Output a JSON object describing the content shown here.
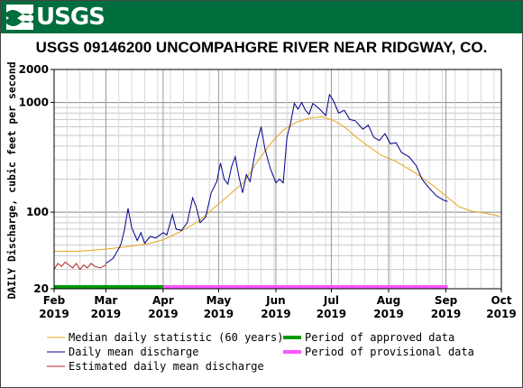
{
  "header": {
    "logo_text": "USGS",
    "logo_icon": "usgs-wave-icon",
    "banner_color": "#006d3c"
  },
  "chart_data": {
    "type": "line",
    "title": "USGS 09146200 UNCOMPAHGRE RIVER NEAR RIDGWAY, CO.",
    "ylabel": "DAILY Discharge, cubic feet per second",
    "xlabel": "",
    "y_scale": "log",
    "ylim": [
      20,
      2000
    ],
    "y_ticks": [
      {
        "value": 20,
        "label": "20"
      },
      {
        "value": 100,
        "label": "100"
      },
      {
        "value": 1000,
        "label": "1000"
      },
      {
        "value": 2000,
        "label": "2000"
      }
    ],
    "x_range": [
      "2019-02-01",
      "2019-10-01"
    ],
    "x_ticks": [
      {
        "date": "2019-02-01",
        "label": "Feb",
        "year": "2019"
      },
      {
        "date": "2019-03-01",
        "label": "Mar",
        "year": "2019"
      },
      {
        "date": "2019-04-01",
        "label": "Apr",
        "year": "2019"
      },
      {
        "date": "2019-05-01",
        "label": "May",
        "year": "2019"
      },
      {
        "date": "2019-06-01",
        "label": "Jun",
        "year": "2019"
      },
      {
        "date": "2019-07-01",
        "label": "Jul",
        "year": "2019"
      },
      {
        "date": "2019-08-01",
        "label": "Aug",
        "year": "2019"
      },
      {
        "date": "2019-09-01",
        "label": "Sep",
        "year": "2019"
      },
      {
        "date": "2019-10-01",
        "label": "Oct",
        "year": "2019"
      }
    ],
    "grid": true,
    "legend_position": "bottom",
    "series": [
      {
        "name": "Median daily statistic (60 years)",
        "color": "#e8a317",
        "points": [
          [
            "2019-02-01",
            44
          ],
          [
            "2019-02-15",
            44
          ],
          [
            "2019-03-01",
            46
          ],
          [
            "2019-03-15",
            49
          ],
          [
            "2019-03-25",
            52
          ],
          [
            "2019-04-01",
            56
          ],
          [
            "2019-04-10",
            66
          ],
          [
            "2019-04-20",
            82
          ],
          [
            "2019-04-30",
            115
          ],
          [
            "2019-05-08",
            150
          ],
          [
            "2019-05-15",
            190
          ],
          [
            "2019-05-22",
            290
          ],
          [
            "2019-05-29",
            420
          ],
          [
            "2019-06-05",
            560
          ],
          [
            "2019-06-12",
            660
          ],
          [
            "2019-06-19",
            720
          ],
          [
            "2019-06-26",
            740
          ],
          [
            "2019-07-02",
            690
          ],
          [
            "2019-07-08",
            600
          ],
          [
            "2019-07-14",
            490
          ],
          [
            "2019-07-20",
            410
          ],
          [
            "2019-07-28",
            330
          ],
          [
            "2019-08-05",
            290
          ],
          [
            "2019-08-15",
            230
          ],
          [
            "2019-08-25",
            175
          ],
          [
            "2019-09-01",
            140
          ],
          [
            "2019-09-08",
            112
          ],
          [
            "2019-09-15",
            102
          ],
          [
            "2019-09-22",
            98
          ],
          [
            "2019-09-30",
            92
          ]
        ]
      },
      {
        "name": "Daily mean discharge",
        "color": "#00008b",
        "points": [
          [
            "2019-03-01",
            34
          ],
          [
            "2019-03-05",
            38
          ],
          [
            "2019-03-09",
            50
          ],
          [
            "2019-03-11",
            68
          ],
          [
            "2019-03-13",
            108
          ],
          [
            "2019-03-15",
            72
          ],
          [
            "2019-03-18",
            55
          ],
          [
            "2019-03-20",
            65
          ],
          [
            "2019-03-22",
            52
          ],
          [
            "2019-03-25",
            60
          ],
          [
            "2019-03-28",
            58
          ],
          [
            "2019-04-01",
            65
          ],
          [
            "2019-04-03",
            62
          ],
          [
            "2019-04-06",
            95
          ],
          [
            "2019-04-08",
            70
          ],
          [
            "2019-04-11",
            68
          ],
          [
            "2019-04-14",
            80
          ],
          [
            "2019-04-17",
            135
          ],
          [
            "2019-04-19",
            110
          ],
          [
            "2019-04-21",
            80
          ],
          [
            "2019-04-24",
            90
          ],
          [
            "2019-04-27",
            150
          ],
          [
            "2019-04-30",
            190
          ],
          [
            "2019-05-02",
            280
          ],
          [
            "2019-05-04",
            200
          ],
          [
            "2019-05-06",
            180
          ],
          [
            "2019-05-08",
            260
          ],
          [
            "2019-05-10",
            320
          ],
          [
            "2019-05-12",
            210
          ],
          [
            "2019-05-14",
            150
          ],
          [
            "2019-05-16",
            220
          ],
          [
            "2019-05-18",
            190
          ],
          [
            "2019-05-20",
            300
          ],
          [
            "2019-05-22",
            450
          ],
          [
            "2019-05-24",
            600
          ],
          [
            "2019-05-26",
            380
          ],
          [
            "2019-05-29",
            250
          ],
          [
            "2019-06-01",
            185
          ],
          [
            "2019-06-03",
            200
          ],
          [
            "2019-06-05",
            185
          ],
          [
            "2019-06-07",
            480
          ],
          [
            "2019-06-09",
            650
          ],
          [
            "2019-06-11",
            980
          ],
          [
            "2019-06-13",
            870
          ],
          [
            "2019-06-15",
            1000
          ],
          [
            "2019-06-17",
            850
          ],
          [
            "2019-06-19",
            780
          ],
          [
            "2019-06-21",
            980
          ],
          [
            "2019-06-23",
            920
          ],
          [
            "2019-06-25",
            860
          ],
          [
            "2019-06-28",
            760
          ],
          [
            "2019-06-30",
            1180
          ],
          [
            "2019-07-02",
            1050
          ],
          [
            "2019-07-05",
            800
          ],
          [
            "2019-07-08",
            850
          ],
          [
            "2019-07-11",
            700
          ],
          [
            "2019-07-14",
            680
          ],
          [
            "2019-07-18",
            570
          ],
          [
            "2019-07-21",
            620
          ],
          [
            "2019-07-24",
            480
          ],
          [
            "2019-07-27",
            450
          ],
          [
            "2019-07-30",
            520
          ],
          [
            "2019-08-02",
            420
          ],
          [
            "2019-08-05",
            430
          ],
          [
            "2019-08-08",
            350
          ],
          [
            "2019-08-12",
            320
          ],
          [
            "2019-08-16",
            265
          ],
          [
            "2019-08-19",
            200
          ],
          [
            "2019-08-23",
            165
          ],
          [
            "2019-08-27",
            140
          ],
          [
            "2019-08-31",
            128
          ],
          [
            "2019-09-02",
            125
          ]
        ]
      },
      {
        "name": "Estimated daily mean discharge",
        "color": "#b22222",
        "points": [
          [
            "2019-02-01",
            30
          ],
          [
            "2019-02-03",
            34
          ],
          [
            "2019-02-05",
            32
          ],
          [
            "2019-02-07",
            35
          ],
          [
            "2019-02-09",
            33
          ],
          [
            "2019-02-11",
            31
          ],
          [
            "2019-02-13",
            34
          ],
          [
            "2019-02-15",
            30
          ],
          [
            "2019-02-17",
            33
          ],
          [
            "2019-02-19",
            31
          ],
          [
            "2019-02-21",
            34
          ],
          [
            "2019-02-23",
            32
          ],
          [
            "2019-02-26",
            31
          ],
          [
            "2019-03-01",
            33
          ]
        ]
      }
    ],
    "period_bars": [
      {
        "name": "Period of approved data",
        "color": "#009900",
        "start": "2019-02-01",
        "end": "2019-04-01"
      },
      {
        "name": "Period of provisional data",
        "color": "#ff55ff",
        "start": "2019-04-01",
        "end": "2019-09-02"
      }
    ]
  }
}
